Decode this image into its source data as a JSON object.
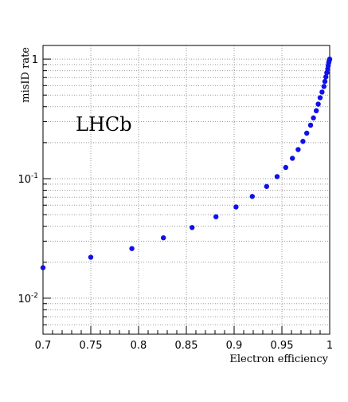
{
  "chart_data": {
    "type": "scatter",
    "xlabel": "Electron efficiency",
    "ylabel": "misID rate",
    "annotation": "LHCb",
    "xlim": [
      0.7,
      1.0
    ],
    "ylim": [
      0.005,
      1.3
    ],
    "yscale": "log",
    "grid": true,
    "marker_color": "#1010e8",
    "x_ticks": [
      {
        "value": 0.7,
        "label": "0.7"
      },
      {
        "value": 0.75,
        "label": "0.75"
      },
      {
        "value": 0.8,
        "label": "0.8"
      },
      {
        "value": 0.85,
        "label": "0.85"
      },
      {
        "value": 0.9,
        "label": "0.9"
      },
      {
        "value": 0.95,
        "label": "0.95"
      },
      {
        "value": 1.0,
        "label": "1"
      }
    ],
    "y_ticks": [
      {
        "value": 0.01,
        "base": "10",
        "exp": "-2"
      },
      {
        "value": 0.1,
        "base": "10",
        "exp": "-1"
      },
      {
        "value": 1,
        "base": "1",
        "exp": ""
      }
    ],
    "series": [
      {
        "points": [
          {
            "x": 0.7,
            "y": 0.018
          },
          {
            "x": 0.75,
            "y": 0.022
          },
          {
            "x": 0.793,
            "y": 0.026
          },
          {
            "x": 0.826,
            "y": 0.032
          },
          {
            "x": 0.856,
            "y": 0.039
          },
          {
            "x": 0.881,
            "y": 0.048
          },
          {
            "x": 0.902,
            "y": 0.058
          },
          {
            "x": 0.919,
            "y": 0.071
          },
          {
            "x": 0.934,
            "y": 0.086
          },
          {
            "x": 0.945,
            "y": 0.104
          },
          {
            "x": 0.954,
            "y": 0.124
          },
          {
            "x": 0.961,
            "y": 0.148
          },
          {
            "x": 0.967,
            "y": 0.175
          },
          {
            "x": 0.972,
            "y": 0.205
          },
          {
            "x": 0.976,
            "y": 0.24
          },
          {
            "x": 0.98,
            "y": 0.28
          },
          {
            "x": 0.983,
            "y": 0.322
          },
          {
            "x": 0.986,
            "y": 0.37
          },
          {
            "x": 0.988,
            "y": 0.42
          },
          {
            "x": 0.99,
            "y": 0.475
          },
          {
            "x": 0.992,
            "y": 0.53
          },
          {
            "x": 0.994,
            "y": 0.59
          },
          {
            "x": 0.995,
            "y": 0.65
          },
          {
            "x": 0.996,
            "y": 0.71
          },
          {
            "x": 0.997,
            "y": 0.77
          },
          {
            "x": 0.998,
            "y": 0.83
          },
          {
            "x": 0.9985,
            "y": 0.88
          },
          {
            "x": 0.999,
            "y": 0.93
          },
          {
            "x": 0.9995,
            "y": 0.97
          },
          {
            "x": 1.0,
            "y": 1.0
          }
        ]
      }
    ]
  }
}
